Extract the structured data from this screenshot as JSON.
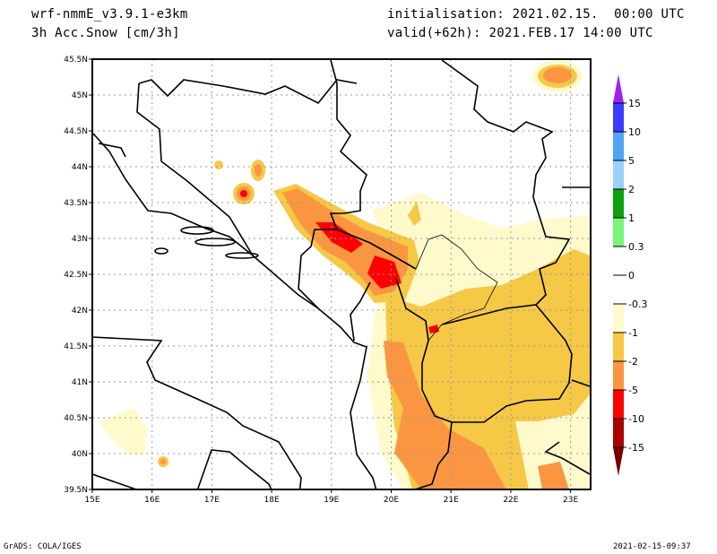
{
  "header": {
    "model": "wrf-nmmE_v3.9.1-e3km",
    "variable": "3h Acc.Snow [cm/3h]",
    "initialisation": "initialisation: 2021.02.15.  00:00 UTC",
    "valid": "valid(+62h): 2021.FEB.17 14:00 UTC"
  },
  "footer": {
    "credit": "GrADS: COLA/IGES",
    "timestamp": "2021-02-15-09:37"
  },
  "map": {
    "lat_labels": [
      "45.5N",
      "45N",
      "44.5N",
      "44N",
      "43.5N",
      "43N",
      "42.5N",
      "42N",
      "41.5N",
      "41N",
      "40.5N",
      "40N",
      "39.5N"
    ],
    "lon_labels": [
      "15E",
      "16E",
      "17E",
      "18E",
      "19E",
      "20E",
      "21E",
      "22E",
      "23E"
    ]
  },
  "colorbar": {
    "labels": [
      "15",
      "10",
      "5",
      "2",
      "1",
      "0.3",
      "0",
      "-0.3",
      "-1",
      "-2",
      "-5",
      "-10",
      "-15"
    ],
    "colors": [
      "#a020f0",
      "#3c3cff",
      "#50a5f5",
      "#96d2fa",
      "#0fa00f",
      "#78f578",
      "#ffffff",
      "#ffffff",
      "#fffacc",
      "#f5c846",
      "#fa9641",
      "#ff0000",
      "#aa0000",
      "#780000"
    ]
  }
}
